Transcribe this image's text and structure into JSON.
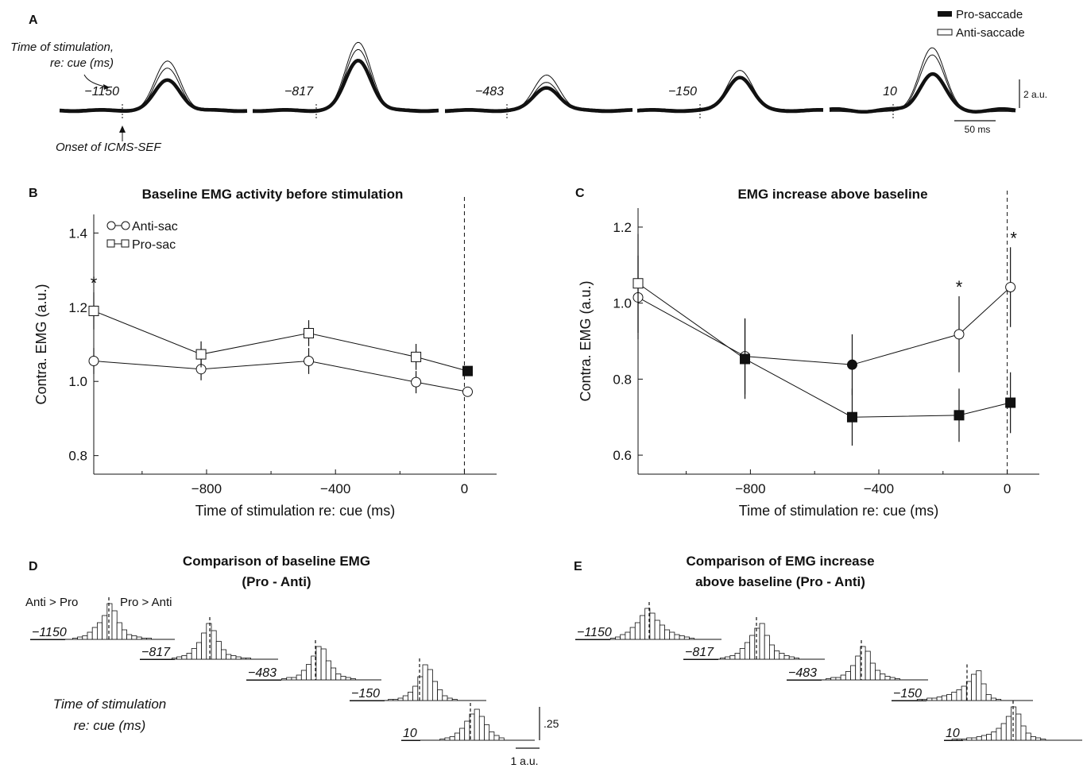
{
  "panel_letters": [
    "A",
    "B",
    "C",
    "D",
    "E"
  ],
  "panel_a": {
    "stim_times": [
      "−1150",
      "−817",
      "−483",
      "−150",
      "10"
    ],
    "annotation_time": "Time of stimulation,",
    "annotation_time2": "re: cue (ms)",
    "annotation_onset": "Onset of ICMS-SEF",
    "legend": [
      "Pro-saccade",
      "Anti-saccade"
    ],
    "scale_y": "2 a.u.",
    "scale_x": "50 ms"
  },
  "panel_b": {
    "title": "Baseline EMG activity before stimulation",
    "legend": [
      "Anti-sac",
      "Pro-sac"
    ]
  },
  "panel_c": {
    "title": "EMG increase above baseline"
  },
  "panel_d": {
    "title_line1": "Comparison of baseline EMG",
    "title_line2": "(Pro - Anti)",
    "label_left": "Anti > Pro",
    "label_right": "Pro > Anti",
    "side_label1": "Time of stimulation",
    "side_label2": "re: cue (ms)",
    "scale_y": ".25",
    "scale_x": "1 a.u."
  },
  "panel_e": {
    "title_line1": "Comparison of EMG increase",
    "title_line2": "above baseline (Pro - Anti)"
  },
  "significance_marker": "*",
  "chart_data": [
    {
      "type": "line",
      "panel": "B",
      "title": "Baseline EMG activity before stimulation",
      "xlabel": "Time of stimulation re: cue (ms)",
      "ylabel": "Contra. EMG (a.u.)",
      "xlim": [
        -1150,
        100
      ],
      "ylim": [
        0.75,
        1.45
      ],
      "xticks": [
        -800,
        -400,
        0
      ],
      "xtick_labels": [
        "−800",
        "−400",
        "0"
      ],
      "yticks": [
        0.8,
        1.0,
        1.2,
        1.4
      ],
      "ytick_labels": [
        "0.8",
        "1.0",
        "1.2",
        "1.4"
      ],
      "vline": 0,
      "series": [
        {
          "name": "Anti-sac",
          "marker": "circle",
          "x": [
            -1150,
            -817,
            -483,
            -150,
            10
          ],
          "y": [
            1.055,
            1.033,
            1.055,
            0.998,
            0.972
          ],
          "err": [
            0.035,
            0.03,
            0.035,
            0.03,
            0.0
          ],
          "filled": [
            false,
            false,
            false,
            false,
            false
          ]
        },
        {
          "name": "Pro-sac",
          "marker": "square",
          "x": [
            -1150,
            -817,
            -483,
            -150,
            10
          ],
          "y": [
            1.19,
            1.073,
            1.13,
            1.066,
            1.028
          ],
          "err": [
            0.05,
            0.035,
            0.035,
            0.035,
            0.0
          ],
          "filled": [
            false,
            false,
            false,
            false,
            true
          ]
        }
      ],
      "significant_x": [
        -1150
      ]
    },
    {
      "type": "line",
      "panel": "C",
      "title": "EMG increase above baseline",
      "xlabel": "Time of stimulation re: cue (ms)",
      "ylabel": "Contra. EMG (a.u.)",
      "xlim": [
        -1150,
        100
      ],
      "ylim": [
        0.55,
        1.25
      ],
      "xticks": [
        -800,
        -400,
        0
      ],
      "xtick_labels": [
        "−800",
        "−400",
        "0"
      ],
      "yticks": [
        0.6,
        0.8,
        1.0,
        1.2
      ],
      "ytick_labels": [
        "0.6",
        "0.8",
        "1.0",
        "1.2"
      ],
      "vline": 0,
      "series": [
        {
          "name": "Anti-sac",
          "marker": "circle",
          "x": [
            -1150,
            -817,
            -483,
            -150,
            10
          ],
          "y": [
            1.015,
            0.86,
            0.838,
            0.918,
            1.042
          ],
          "err": [
            0.11,
            0.1,
            0.08,
            0.1,
            0.105
          ],
          "filled": [
            false,
            false,
            true,
            false,
            false
          ]
        },
        {
          "name": "Pro-sac",
          "marker": "square",
          "x": [
            -1150,
            -817,
            -483,
            -150,
            10
          ],
          "y": [
            1.052,
            0.853,
            0.7,
            0.705,
            0.738
          ],
          "err": [
            0.13,
            0.105,
            0.075,
            0.07,
            0.08
          ],
          "filled": [
            false,
            true,
            true,
            true,
            true
          ]
        }
      ],
      "significant_x": [
        -150,
        10
      ]
    },
    {
      "type": "bar",
      "panel": "D",
      "title": "Comparison of baseline EMG (Pro - Anti)",
      "groups": [
        {
          "label": "−1150",
          "values": [
            0.01,
            0.02,
            0.03,
            0.06,
            0.1,
            0.14,
            0.2,
            0.3,
            0.24,
            0.14,
            0.08,
            0.04,
            0.03,
            0.02,
            0.01,
            0.01
          ]
        },
        {
          "label": "−817",
          "values": [
            0.01,
            0.02,
            0.03,
            0.05,
            0.09,
            0.14,
            0.22,
            0.3,
            0.24,
            0.15,
            0.08,
            0.04,
            0.03,
            0.02,
            0.01,
            0.01
          ]
        },
        {
          "label": "−483",
          "values": [
            0.01,
            0.02,
            0.02,
            0.04,
            0.08,
            0.13,
            0.2,
            0.28,
            0.26,
            0.16,
            0.1,
            0.05,
            0.03,
            0.02,
            0.01
          ]
        },
        {
          "label": "−150",
          "values": [
            0.01,
            0.01,
            0.02,
            0.04,
            0.07,
            0.12,
            0.2,
            0.3,
            0.26,
            0.16,
            0.09,
            0.04,
            0.02,
            0.01
          ]
        },
        {
          "label": "10",
          "values": [
            0.01,
            0.02,
            0.03,
            0.06,
            0.1,
            0.16,
            0.22,
            0.26,
            0.2,
            0.13,
            0.07,
            0.04,
            0.02
          ]
        }
      ]
    },
    {
      "type": "bar",
      "panel": "E",
      "title": "Comparison of EMG increase above baseline (Pro - Anti)",
      "groups": [
        {
          "label": "−1150",
          "values": [
            0.01,
            0.02,
            0.04,
            0.06,
            0.1,
            0.14,
            0.2,
            0.26,
            0.22,
            0.16,
            0.12,
            0.08,
            0.06,
            0.04,
            0.03,
            0.02,
            0.01
          ]
        },
        {
          "label": "−817",
          "values": [
            0.01,
            0.02,
            0.03,
            0.05,
            0.09,
            0.14,
            0.2,
            0.26,
            0.3,
            0.2,
            0.12,
            0.07,
            0.05,
            0.03,
            0.02,
            0.01
          ]
        },
        {
          "label": "−483",
          "values": [
            0.01,
            0.02,
            0.02,
            0.04,
            0.07,
            0.12,
            0.2,
            0.28,
            0.24,
            0.14,
            0.08,
            0.05,
            0.03,
            0.02,
            0.01
          ]
        },
        {
          "label": "−150",
          "values": [
            0.01,
            0.01,
            0.02,
            0.02,
            0.03,
            0.04,
            0.05,
            0.07,
            0.09,
            0.12,
            0.16,
            0.22,
            0.25,
            0.14,
            0.05,
            0.02,
            0.01
          ]
        },
        {
          "label": "10",
          "values": [
            0.01,
            0.01,
            0.01,
            0.02,
            0.02,
            0.03,
            0.04,
            0.05,
            0.07,
            0.1,
            0.14,
            0.2,
            0.28,
            0.22,
            0.12,
            0.06,
            0.03,
            0.02,
            0.01
          ]
        }
      ]
    }
  ]
}
